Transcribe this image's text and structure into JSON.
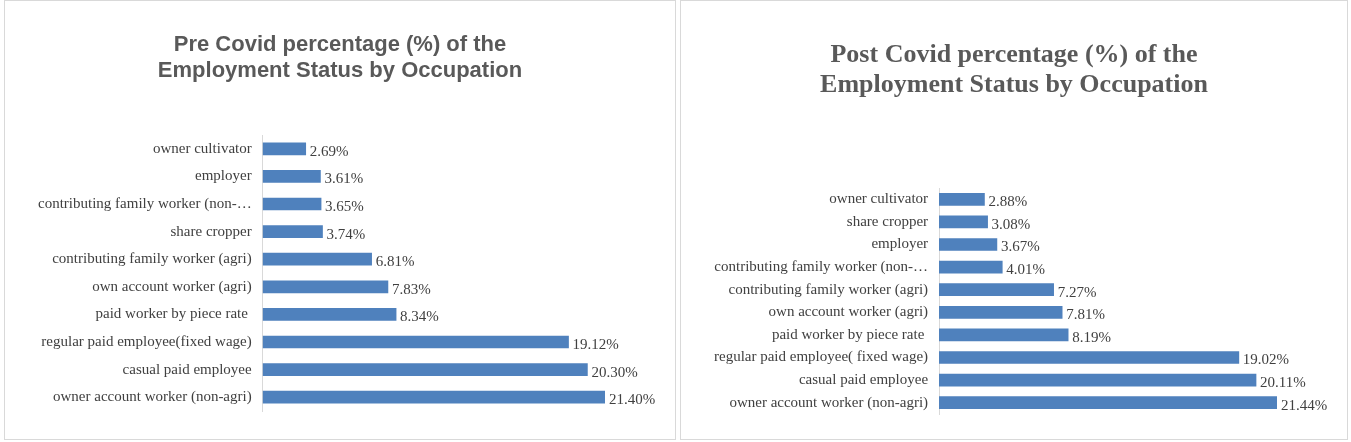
{
  "chart_data": [
    {
      "type": "bar",
      "orientation": "horizontal",
      "title": "Pre Covid percentage (%) of the Employment Status by Occupation",
      "categories": [
        "owner cultivator",
        "employer",
        "contributing family worker (non-…",
        "share cropper",
        "contributing family worker (agri)",
        "own account worker (agri)",
        "paid worker by piece rate ",
        "regular paid employee(fixed wage)",
        "casual paid employee",
        "owner account worker (non-agri)"
      ],
      "values": [
        2.69,
        3.61,
        3.65,
        3.74,
        6.81,
        7.83,
        8.34,
        19.12,
        20.3,
        21.4
      ],
      "value_labels": [
        "2.69%",
        "3.61%",
        "3.65%",
        "3.74%",
        "6.81%",
        "7.83%",
        "8.34%",
        "19.12%",
        "20.30%",
        "21.40%"
      ],
      "color": "#4f81bd",
      "legend": false
    },
    {
      "type": "bar",
      "orientation": "horizontal",
      "title": "Post Covid percentage (%) of the Employment Status by Occupation",
      "categories": [
        "owner cultivator",
        "share cropper",
        "employer",
        "contributing family worker (non-…",
        "contributing family worker (agri)",
        "own account worker (agri)",
        "paid worker by piece rate ",
        "regular paid employee( fixed wage)",
        "casual paid employee",
        "owner account worker (non-agri)"
      ],
      "values": [
        2.88,
        3.08,
        3.67,
        4.01,
        7.27,
        7.81,
        8.19,
        19.02,
        20.11,
        21.44
      ],
      "value_labels": [
        "2.88%",
        "3.08%",
        "3.67%",
        "4.01%",
        "7.27%",
        "7.81%",
        "8.19%",
        "19.02%",
        "20.11%",
        "21.44%"
      ],
      "color": "#4f81bd",
      "legend": false
    }
  ]
}
